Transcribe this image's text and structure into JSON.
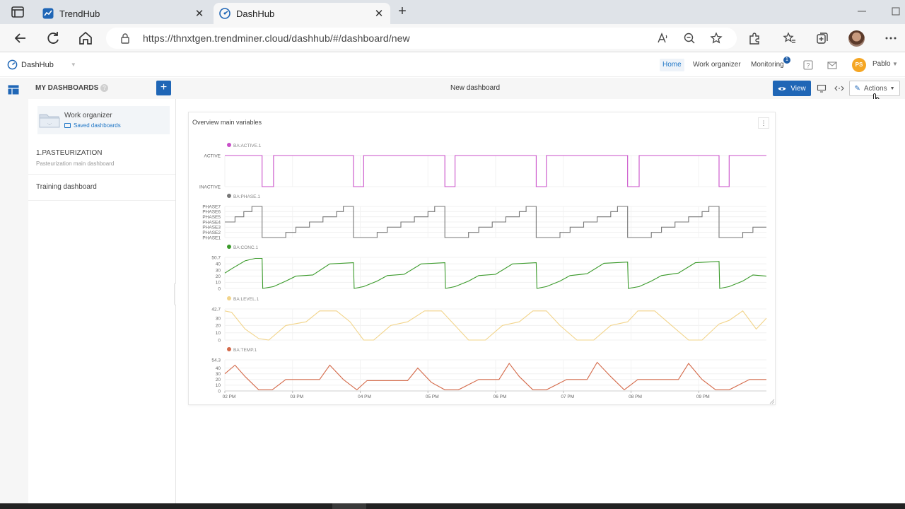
{
  "browser": {
    "tabs": [
      {
        "title": "TrendHub",
        "active": false
      },
      {
        "title": "DashHub",
        "active": true
      }
    ],
    "url": "https://thnxtgen.trendminer.cloud/dashhub/#/dashboard/new"
  },
  "app": {
    "brand": "DashHub",
    "nav": [
      {
        "label": "Home",
        "active": true
      },
      {
        "label": "Work organizer",
        "active": false
      },
      {
        "label": "Monitoring",
        "active": false
      }
    ],
    "monitoring_badge": "1",
    "user": {
      "initials": "PS",
      "name": "Pablo"
    }
  },
  "toolbar": {
    "my_dashboards": "MY DASHBOARDS",
    "help": "?",
    "add": "+",
    "dashboard_title": "New dashboard",
    "view_label": "View",
    "actions_label": "Actions"
  },
  "sidebar": {
    "card": {
      "title": "Work organizer",
      "subtitle": "Saved dashboards"
    },
    "items": [
      {
        "title": "1.PASTEURIZATION",
        "subtitle": "Pasteurization main dashboard"
      },
      {
        "title": "Training dashboard",
        "subtitle": ""
      }
    ]
  },
  "widget": {
    "title": "Overview main variables",
    "menu": "⋮"
  },
  "chart_data": {
    "type": "line",
    "x_ticks": [
      "02 PM",
      "03 PM",
      "04 PM",
      "05 PM",
      "06 PM",
      "07 PM",
      "08 PM",
      "09 PM"
    ],
    "series": [
      {
        "name": "BA:ACTIVE.1",
        "color": "#c94fc9",
        "kind": "step",
        "y_tick_labels": [
          "ACTIVE",
          "INACTIVE"
        ],
        "ylim": [
          0,
          1
        ],
        "x": [
          0.0,
          0.55,
          0.55,
          0.72,
          0.72,
          1.9,
          1.9,
          2.05,
          2.05,
          3.25,
          3.25,
          3.4,
          3.4,
          4.6,
          4.6,
          4.75,
          4.75,
          5.95,
          5.95,
          6.12,
          6.12,
          7.3,
          7.3,
          7.45,
          7.45,
          8.0
        ],
        "values": [
          1,
          1,
          0,
          0,
          1,
          1,
          0,
          0,
          1,
          1,
          0,
          0,
          1,
          1,
          0,
          0,
          1,
          1,
          0,
          0,
          1,
          1,
          0,
          0,
          1,
          1
        ]
      },
      {
        "name": "BA:PHASE.1",
        "color": "#777777",
        "kind": "step",
        "y_tick_labels": [
          "PHASE7",
          "PHASE6",
          "PHASE5",
          "PHASE4",
          "PHASE3",
          "PHASE2",
          "PHASE1"
        ],
        "ylim": [
          1,
          7
        ],
        "x": [
          0.0,
          0.15,
          0.15,
          0.28,
          0.28,
          0.4,
          0.4,
          0.55,
          0.55,
          0.9,
          0.9,
          1.05,
          1.05,
          1.25,
          1.25,
          1.45,
          1.45,
          1.65,
          1.65,
          1.75,
          1.75,
          1.9,
          1.9,
          2.25,
          2.25,
          2.4,
          2.4,
          2.6,
          2.6,
          2.8,
          2.8,
          3.0,
          3.0,
          3.1,
          3.1,
          3.25,
          3.25,
          3.6,
          3.6,
          3.75,
          3.75,
          3.95,
          3.95,
          4.15,
          4.15,
          4.35,
          4.35,
          4.45,
          4.45,
          4.6,
          4.6,
          4.95,
          4.95,
          5.1,
          5.1,
          5.3,
          5.3,
          5.5,
          5.5,
          5.7,
          5.7,
          5.8,
          5.8,
          5.95,
          5.95,
          6.3,
          6.3,
          6.45,
          6.45,
          6.65,
          6.65,
          6.85,
          6.85,
          7.05,
          7.05,
          7.15,
          7.15,
          7.3,
          7.3,
          7.65,
          7.65,
          7.8,
          7.8,
          8.0
        ],
        "values": [
          4,
          4,
          5,
          5,
          6,
          6,
          7,
          7,
          1,
          1,
          2,
          2,
          3,
          3,
          4,
          4,
          5,
          5,
          6,
          6,
          7,
          7,
          1,
          1,
          2,
          2,
          3,
          3,
          4,
          4,
          5,
          5,
          6,
          6,
          7,
          7,
          1,
          1,
          2,
          2,
          3,
          3,
          4,
          4,
          5,
          5,
          6,
          6,
          7,
          7,
          1,
          1,
          2,
          2,
          3,
          3,
          4,
          4,
          5,
          5,
          6,
          6,
          7,
          7,
          1,
          1,
          2,
          2,
          3,
          3,
          4,
          4,
          5,
          5,
          6,
          6,
          7,
          7,
          1,
          1,
          2,
          2,
          3,
          3
        ]
      },
      {
        "name": "BA:CONC.1",
        "color": "#3a9a2a",
        "kind": "line",
        "y_tick_labels": [
          "50.7",
          "40",
          "30",
          "20",
          "10",
          "0"
        ],
        "y_tick_values": [
          50.7,
          40,
          30,
          20,
          10,
          0
        ],
        "ylim": [
          0,
          50.7
        ],
        "x": [
          0.0,
          0.1,
          0.3,
          0.45,
          0.55,
          0.56,
          0.72,
          0.9,
          1.05,
          1.3,
          1.55,
          1.9,
          1.91,
          2.05,
          2.25,
          2.4,
          2.65,
          2.9,
          3.25,
          3.26,
          3.4,
          3.6,
          3.75,
          4.0,
          4.25,
          4.6,
          4.61,
          4.75,
          4.95,
          5.1,
          5.35,
          5.6,
          5.95,
          5.96,
          6.12,
          6.3,
          6.45,
          6.7,
          6.95,
          7.3,
          7.31,
          7.45,
          7.65,
          7.8,
          8.0
        ],
        "values": [
          25,
          32,
          45,
          49,
          49,
          0,
          3,
          12,
          20,
          22,
          40,
          42,
          0,
          3,
          12,
          21,
          23,
          40,
          42,
          0,
          3,
          12,
          21,
          23,
          40,
          42,
          0,
          3,
          12,
          21,
          24,
          41,
          43,
          0,
          3,
          12,
          21,
          25,
          42,
          44,
          0,
          3,
          12,
          22,
          20
        ]
      },
      {
        "name": "BA:LEVEL.1",
        "color": "#f2d48a",
        "kind": "line",
        "y_tick_labels": [
          "42.7",
          "30",
          "20",
          "10",
          "0"
        ],
        "y_tick_values": [
          42.7,
          30,
          20,
          10,
          0
        ],
        "ylim": [
          0,
          42.7
        ],
        "x": [
          0.0,
          0.1,
          0.3,
          0.5,
          0.65,
          0.9,
          1.2,
          1.4,
          1.65,
          1.85,
          2.05,
          2.2,
          2.45,
          2.7,
          2.95,
          3.2,
          3.4,
          3.6,
          3.85,
          4.1,
          4.35,
          4.55,
          4.75,
          4.95,
          5.2,
          5.45,
          5.7,
          5.95,
          6.1,
          6.35,
          6.6,
          6.85,
          7.05,
          7.3,
          7.45,
          7.65,
          7.85,
          8.0
        ],
        "values": [
          40,
          38,
          15,
          2,
          0,
          20,
          25,
          40,
          40,
          25,
          0,
          0,
          20,
          25,
          40,
          40,
          20,
          0,
          0,
          20,
          25,
          40,
          40,
          20,
          0,
          0,
          20,
          25,
          40,
          40,
          20,
          0,
          0,
          22,
          27,
          40,
          15,
          30
        ]
      },
      {
        "name": "BA:TEMP.1",
        "color": "#d46a4a",
        "kind": "line",
        "y_tick_labels": [
          "54.3",
          "40",
          "30",
          "20",
          "10",
          "0"
        ],
        "y_tick_values": [
          54.3,
          40,
          30,
          20,
          10,
          0
        ],
        "ylim": [
          0,
          54.3
        ],
        "x": [
          0.0,
          0.15,
          0.3,
          0.5,
          0.7,
          0.9,
          1.1,
          1.4,
          1.55,
          1.75,
          1.95,
          2.1,
          2.4,
          2.7,
          2.85,
          3.05,
          3.25,
          3.45,
          3.75,
          4.05,
          4.2,
          4.35,
          4.55,
          4.75,
          5.05,
          5.35,
          5.5,
          5.7,
          5.9,
          6.1,
          6.4,
          6.7,
          6.85,
          7.05,
          7.25,
          7.45,
          7.75,
          8.0
        ],
        "values": [
          30,
          45,
          25,
          2,
          2,
          20,
          20,
          20,
          45,
          20,
          2,
          18,
          18,
          18,
          40,
          15,
          2,
          2,
          20,
          20,
          48,
          25,
          2,
          2,
          20,
          20,
          50,
          25,
          2,
          20,
          20,
          20,
          48,
          20,
          2,
          2,
          20,
          20
        ]
      }
    ]
  }
}
